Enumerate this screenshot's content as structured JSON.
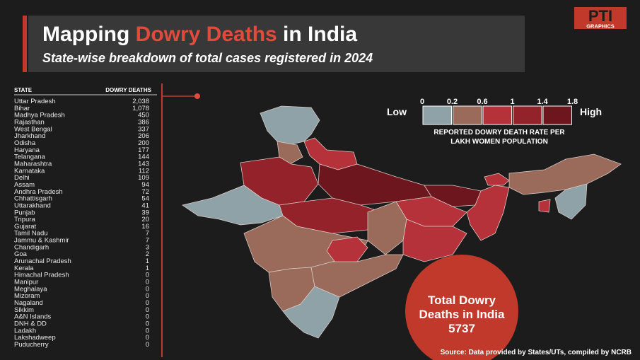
{
  "header": {
    "title_start": "Mapping ",
    "title_highlight": "Dowry Deaths",
    "title_end": " in India",
    "subtitle": "State-wise breakdown of total cases registered in 2024"
  },
  "logo": {
    "mark": "PTI",
    "label": "GRAPHICS"
  },
  "table": {
    "columns": [
      "STATE",
      "DOWRY DEATHS"
    ],
    "rows": [
      [
        "Uttar Pradesh",
        {
          "value": 2038,
          "label": "2,038"
        }
      ],
      [
        "Bihar",
        {
          "value": 1078,
          "label": "1,078"
        }
      ],
      [
        "Madhya Pradesh",
        450
      ],
      [
        "Rajasthan",
        386
      ],
      [
        "West Bengal",
        337
      ],
      [
        "Jharkhand",
        206
      ],
      [
        "Odisha",
        200
      ],
      [
        "Haryana",
        177
      ],
      [
        "Telangana",
        144
      ],
      [
        "Maharashtra",
        143
      ],
      [
        "Karnataka",
        112
      ],
      [
        "Delhi",
        109
      ],
      [
        "Assam",
        94
      ],
      [
        "Andhra Pradesh",
        72
      ],
      [
        "Chhattisgarh",
        54
      ],
      [
        "Uttarakhand",
        41
      ],
      [
        "Punjab",
        39
      ],
      [
        "Tripura",
        20
      ],
      [
        "Gujarat",
        16
      ],
      [
        "Tamil Nadu",
        7
      ],
      [
        "Jammu & Kashmir",
        7
      ],
      [
        "Chandigarh",
        3
      ],
      [
        "Goa",
        2
      ],
      [
        "Arunachal Pradesh",
        1
      ],
      [
        "Kerala",
        1
      ],
      [
        "Himachal Pradesh",
        0
      ],
      [
        "Manipur",
        0
      ],
      [
        "Meghalaya",
        0
      ],
      [
        "Mizoram",
        0
      ],
      [
        "Nagaland",
        0
      ],
      [
        "Sikkim",
        0
      ],
      [
        "A&N Islands",
        0
      ],
      [
        "DNH & DD",
        0
      ],
      [
        "Ladakh",
        0
      ],
      [
        "Lakshadweep",
        0
      ],
      [
        "Puducherry",
        0
      ]
    ]
  },
  "legend": {
    "ticks": [
      0,
      0.2,
      0.6,
      1,
      1.4,
      1.8
    ],
    "colors": [
      "#8fa2a7",
      "#9a6a5b",
      "#b6323a",
      "#93222a",
      "#6e161d"
    ],
    "low": "Low",
    "high": "High",
    "caption": [
      "REPORTED DOWRY DEATH RATE PER",
      "LAKH WOMEN POPULATION"
    ]
  },
  "total": {
    "lines": [
      "Total Dowry",
      "Deaths in India"
    ],
    "value": 5737
  },
  "source": "Source: Data provided by States/UTs, compiled by NCRB"
}
